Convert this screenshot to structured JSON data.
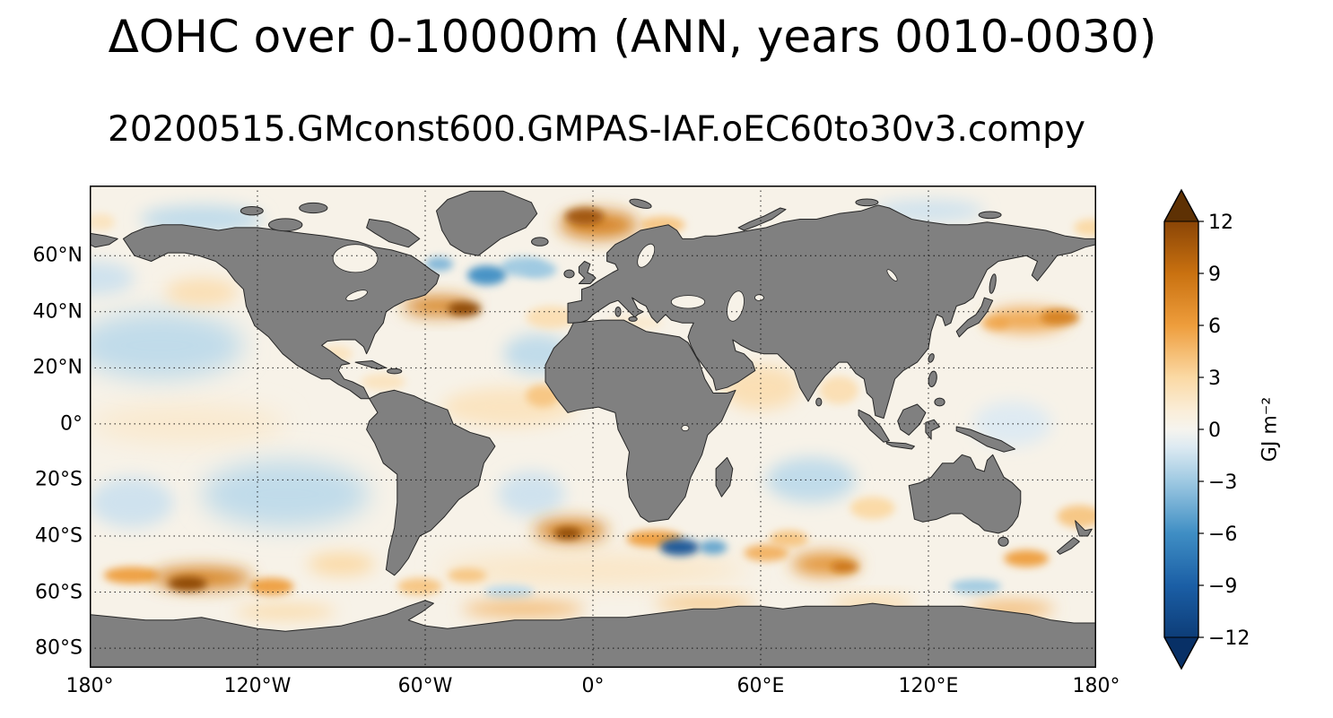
{
  "figure": {
    "title": "ΔOHC over 0-10000m (ANN, years 0010-0030)",
    "subtitle": "20200515.GMconst600.GMPAS-IAF.oEC60to30v3.compy"
  },
  "axes": {
    "x_ticks": [
      {
        "label": "180°",
        "lon": -180
      },
      {
        "label": "120°W",
        "lon": -120
      },
      {
        "label": "60°W",
        "lon": -60
      },
      {
        "label": "0°",
        "lon": 0
      },
      {
        "label": "60°E",
        "lon": 60
      },
      {
        "label": "120°E",
        "lon": 120
      },
      {
        "label": "180°",
        "lon": 180
      }
    ],
    "y_ticks": [
      {
        "label": "60°N",
        "lat": 60
      },
      {
        "label": "40°N",
        "lat": 40
      },
      {
        "label": "20°N",
        "lat": 20
      },
      {
        "label": "0°",
        "lat": 0
      },
      {
        "label": "20°S",
        "lat": -20
      },
      {
        "label": "40°S",
        "lat": -40
      },
      {
        "label": "60°S",
        "lat": -60
      },
      {
        "label": "80°S",
        "lat": -80
      }
    ]
  },
  "colorbar": {
    "label": "GJ m⁻²",
    "vmin": -12,
    "vmax": 12,
    "tick_values": [
      12,
      9,
      6,
      3,
      0,
      -3,
      -6,
      -9,
      -12
    ],
    "tick_labels": [
      "12",
      "9",
      "6",
      "3",
      "0",
      "−3",
      "−6",
      "−9",
      "−12"
    ],
    "extend": "both",
    "over_color": "#5e3104",
    "under_color": "#083066",
    "stops": [
      {
        "v": -12,
        "c": "#0d3d78"
      },
      {
        "v": -9,
        "c": "#1b5fa6"
      },
      {
        "v": -6,
        "c": "#3f8ec4"
      },
      {
        "v": -3,
        "c": "#9ec9e2"
      },
      {
        "v": -1,
        "c": "#ddeaf2"
      },
      {
        "v": 0,
        "c": "#f6f4ee"
      },
      {
        "v": 1,
        "c": "#faeeda"
      },
      {
        "v": 3,
        "c": "#fbd9a4"
      },
      {
        "v": 6,
        "c": "#ee9d3c"
      },
      {
        "v": 9,
        "c": "#c97110"
      },
      {
        "v": 12,
        "c": "#8a4506"
      }
    ]
  },
  "chart_data": {
    "type": "heatmap",
    "title": "ΔOHC over 0-10000m (ANN, years 0010-0030)",
    "subtitle": "20200515.GMconst600.GMPAS-IAF.oEC60to30v3.compy",
    "variable": "Change in ocean heat content over 0-10000 m depth, annual mean, years 0010-0030",
    "units": "GJ m⁻²",
    "projection": "equirectangular",
    "lon_range": [
      -180,
      180
    ],
    "lat_range": [
      -87,
      85
    ],
    "grid": true,
    "legend_position": "right colorbar, arrows both ends",
    "value_range": [
      -12,
      12
    ],
    "colorbar_ticks": [
      12,
      9,
      6,
      3,
      0,
      -3,
      -6,
      -9,
      -12
    ],
    "land_color": "#808080",
    "coastline_color": "#262626",
    "ocean_base_value": 0.3,
    "anomaly_patches_format": [
      "lon_deg",
      "lat_deg",
      "rx_deg",
      "ry_deg",
      "value_GJ_per_m2"
    ],
    "anomaly_patches": [
      [
        -155,
        28,
        30,
        12,
        -2
      ],
      [
        -178,
        52,
        14,
        6,
        -1.5
      ],
      [
        -140,
        47,
        13,
        5,
        2.5
      ],
      [
        -145,
        0,
        35,
        7,
        1.5
      ],
      [
        -110,
        -25,
        30,
        12,
        -2
      ],
      [
        -165,
        -28,
        15,
        9,
        -1.5
      ],
      [
        -30,
        6,
        24,
        7,
        2
      ],
      [
        -18,
        10,
        6,
        4,
        4
      ],
      [
        -20,
        25,
        12,
        7,
        -2
      ],
      [
        -15,
        38,
        9,
        4,
        2.5
      ],
      [
        -22,
        -25,
        12,
        8,
        -1.5
      ],
      [
        60,
        13,
        14,
        8,
        2.5
      ],
      [
        88,
        12,
        7,
        5,
        2.5
      ],
      [
        78,
        -20,
        16,
        8,
        -2
      ],
      [
        15,
        36,
        10,
        2.5,
        1.5
      ],
      [
        150,
        0,
        14,
        8,
        -1
      ],
      [
        0,
        -52,
        55,
        5,
        2
      ],
      [
        -140,
        73,
        22,
        5,
        -2
      ],
      [
        120,
        76,
        20,
        4,
        -1.5
      ],
      [
        -92,
        25,
        6,
        3,
        2
      ],
      [
        -75,
        15,
        8,
        3,
        2
      ],
      [
        -55,
        42,
        13,
        3.5,
        8
      ],
      [
        -46,
        41,
        6,
        2.5,
        12
      ],
      [
        -38,
        53,
        7,
        3.5,
        -6
      ],
      [
        -25,
        56,
        8,
        3.5,
        -3
      ],
      [
        -19,
        55,
        6,
        3,
        -3
      ],
      [
        2,
        71,
        14,
        5,
        8
      ],
      [
        -3,
        74,
        7,
        3,
        11
      ],
      [
        25,
        71,
        8,
        3,
        4
      ],
      [
        -8,
        -38,
        13,
        4,
        8
      ],
      [
        -9,
        -39,
        5,
        2,
        12
      ],
      [
        22,
        -41,
        10,
        3,
        6
      ],
      [
        31,
        -44,
        7,
        3,
        -10
      ],
      [
        43,
        -44,
        5,
        2.5,
        -5
      ],
      [
        83,
        -50,
        12,
        4,
        7
      ],
      [
        90,
        -51,
        5,
        2,
        9
      ],
      [
        62,
        -46,
        8,
        3,
        5
      ],
      [
        70,
        -41,
        7,
        3,
        4
      ],
      [
        155,
        37,
        14,
        4,
        6
      ],
      [
        167,
        38,
        7,
        3,
        8
      ],
      [
        144,
        36,
        5,
        2.5,
        5
      ],
      [
        -140,
        -55,
        18,
        4,
        8
      ],
      [
        -145,
        -57,
        7,
        2.5,
        12
      ],
      [
        -115,
        -58,
        8,
        3,
        6
      ],
      [
        -165,
        -54,
        10,
        3,
        6
      ],
      [
        -90,
        -50,
        12,
        4,
        3
      ],
      [
        174,
        -33,
        8,
        4,
        4
      ],
      [
        155,
        -48,
        8,
        3,
        6
      ],
      [
        -62,
        -58,
        8,
        3,
        4
      ],
      [
        -45,
        -54,
        7,
        2.5,
        4
      ],
      [
        -25,
        -66,
        22,
        2.5,
        5
      ],
      [
        40,
        -64,
        18,
        2.5,
        4
      ],
      [
        100,
        -64,
        15,
        2.5,
        3
      ],
      [
        150,
        -66,
        15,
        2.5,
        5
      ],
      [
        -110,
        -67,
        18,
        2.5,
        3
      ],
      [
        137,
        -58,
        9,
        2.5,
        -3
      ],
      [
        -30,
        -60,
        9,
        2.5,
        -2
      ],
      [
        100,
        -30,
        8,
        4,
        3
      ],
      [
        -55,
        57,
        5,
        2.5,
        -4
      ],
      [
        178,
        70,
        6,
        3,
        3
      ],
      [
        -176,
        72,
        5,
        3,
        2
      ]
    ]
  }
}
